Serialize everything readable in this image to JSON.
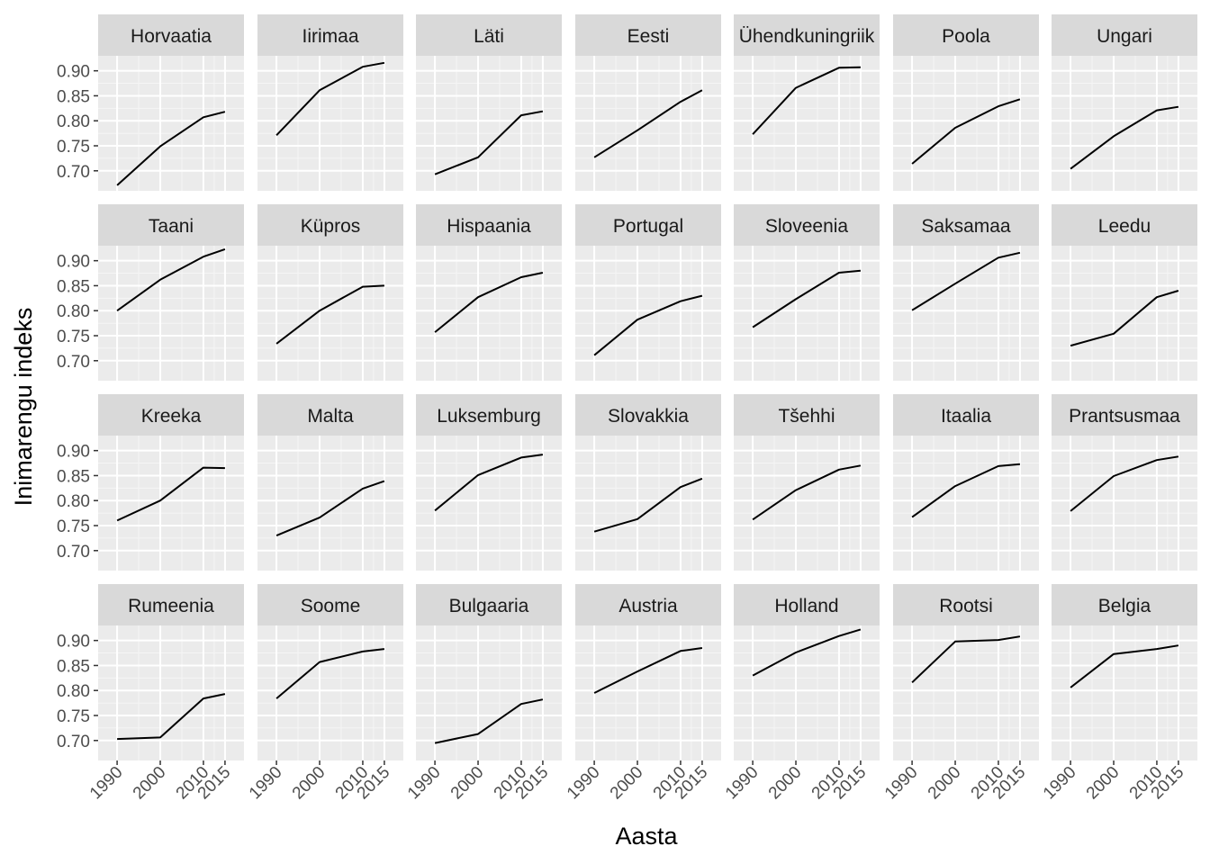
{
  "chart_data": {
    "type": "line",
    "facet": "country",
    "title": "",
    "xlabel": "Aasta",
    "ylabel": "Inimarengu indeks",
    "x": [
      1990,
      2000,
      2010,
      2015
    ],
    "x_tick_labels": [
      "1990",
      "2000",
      "2010",
      "2015"
    ],
    "y_ticks": [
      0.7,
      0.75,
      0.8,
      0.85,
      0.9
    ],
    "y_tick_labels": [
      "0.70",
      "0.75",
      "0.80",
      "0.85",
      "0.90"
    ],
    "ylim": [
      0.66,
      0.93
    ],
    "grid": true,
    "series": [
      {
        "name": "Horvaatia",
        "values": [
          0.671,
          0.749,
          0.807,
          0.818
        ]
      },
      {
        "name": "Iirimaa",
        "values": [
          0.771,
          0.861,
          0.908,
          0.916
        ]
      },
      {
        "name": "Läti",
        "values": [
          0.693,
          0.727,
          0.811,
          0.819
        ]
      },
      {
        "name": "Eesti",
        "values": [
          0.727,
          0.781,
          0.838,
          0.861
        ]
      },
      {
        "name": "Ühendkuningriik",
        "values": [
          0.773,
          0.866,
          0.906,
          0.907
        ]
      },
      {
        "name": "Poola",
        "values": [
          0.714,
          0.786,
          0.829,
          0.843
        ]
      },
      {
        "name": "Ungari",
        "values": [
          0.704,
          0.769,
          0.821,
          0.828
        ]
      },
      {
        "name": "Taani",
        "values": [
          0.8,
          0.862,
          0.908,
          0.923
        ]
      },
      {
        "name": "Küpros",
        "values": [
          0.734,
          0.8,
          0.848,
          0.85
        ]
      },
      {
        "name": "Hispaania",
        "values": [
          0.757,
          0.827,
          0.867,
          0.876
        ]
      },
      {
        "name": "Portugal",
        "values": [
          0.711,
          0.782,
          0.819,
          0.83
        ]
      },
      {
        "name": "Sloveenia",
        "values": [
          0.767,
          0.823,
          0.876,
          0.88
        ]
      },
      {
        "name": "Saksamaa",
        "values": [
          0.801,
          0.854,
          0.906,
          0.916
        ]
      },
      {
        "name": "Leedu",
        "values": [
          0.73,
          0.754,
          0.827,
          0.84
        ]
      },
      {
        "name": "Kreeka",
        "values": [
          0.76,
          0.8,
          0.866,
          0.865
        ]
      },
      {
        "name": "Malta",
        "values": [
          0.73,
          0.766,
          0.824,
          0.839
        ]
      },
      {
        "name": "Luksemburg",
        "values": [
          0.78,
          0.851,
          0.886,
          0.892
        ]
      },
      {
        "name": "Slovakkia",
        "values": [
          0.738,
          0.763,
          0.827,
          0.844
        ]
      },
      {
        "name": "Tšehhi",
        "values": [
          0.762,
          0.821,
          0.862,
          0.87
        ]
      },
      {
        "name": "Itaalia",
        "values": [
          0.767,
          0.829,
          0.869,
          0.873
        ]
      },
      {
        "name": "Prantsusmaa",
        "values": [
          0.779,
          0.849,
          0.881,
          0.888
        ]
      },
      {
        "name": "Rumeenia",
        "values": [
          0.703,
          0.706,
          0.784,
          0.793
        ]
      },
      {
        "name": "Soome",
        "values": [
          0.784,
          0.857,
          0.878,
          0.883
        ]
      },
      {
        "name": "Bulgaaria",
        "values": [
          0.695,
          0.713,
          0.773,
          0.782
        ]
      },
      {
        "name": "Austria",
        "values": [
          0.795,
          0.838,
          0.879,
          0.885
        ]
      },
      {
        "name": "Holland",
        "values": [
          0.83,
          0.876,
          0.909,
          0.922
        ]
      },
      {
        "name": "Rootsi",
        "values": [
          0.816,
          0.898,
          0.901,
          0.908
        ]
      },
      {
        "name": "Belgia",
        "values": [
          0.806,
          0.873,
          0.883,
          0.89
        ]
      }
    ]
  }
}
